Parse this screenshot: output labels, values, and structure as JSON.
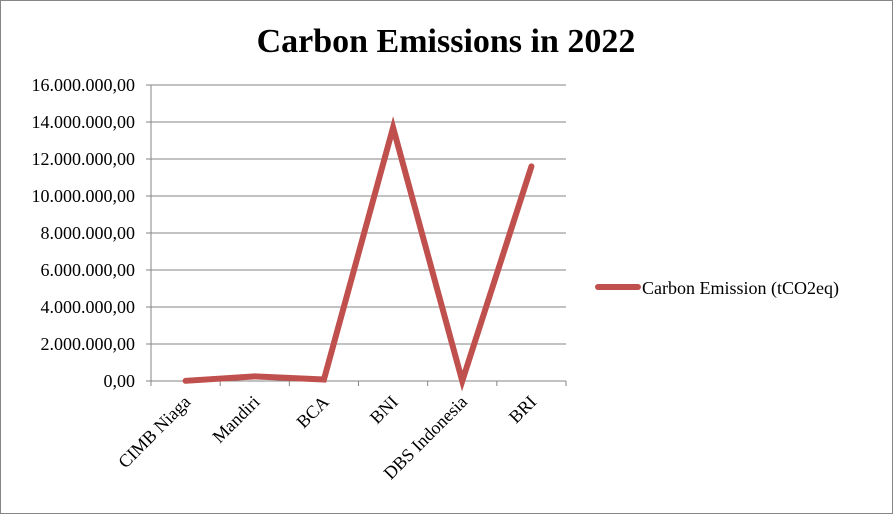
{
  "chart_data": {
    "type": "line",
    "title": "Carbon Emissions in 2022",
    "categories": [
      "CIMB Niaga",
      "Mandiri",
      "BCA",
      "BNI",
      "DBS Indonesia",
      "BRI"
    ],
    "series": [
      {
        "name": "Carbon Emission (tCO2eq)",
        "values": [
          10000,
          250000,
          80000,
          13700000,
          0,
          11600000
        ],
        "color": "#C0504D"
      }
    ],
    "y_ticks": [
      "0,00",
      "2.000.000,00",
      "4.000.000,00",
      "6.000.000,00",
      "8.000.000,00",
      "10.000.000,00",
      "12.000.000,00",
      "14.000.000,00",
      "16.000.000,00"
    ],
    "ylim": [
      0,
      16000000
    ],
    "grid": true,
    "legend_position": "right"
  }
}
